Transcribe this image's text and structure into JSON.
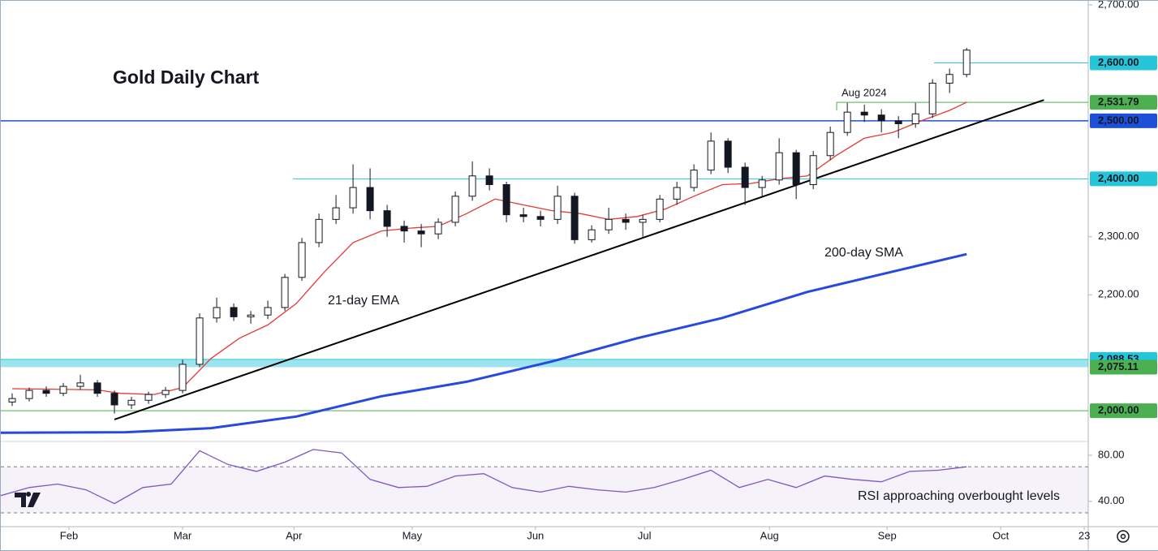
{
  "chart_data": [
    {
      "type": "candlestick",
      "title": "Gold Daily Chart",
      "x": [
        -10,
        -7,
        -4,
        -1,
        2,
        5,
        8,
        11,
        14,
        17,
        20,
        23,
        26,
        29,
        32,
        35,
        38,
        41,
        44,
        47,
        50,
        53,
        56,
        59,
        62,
        65,
        68,
        71,
        74,
        77,
        80,
        83,
        86,
        89,
        92,
        95,
        98,
        101,
        104,
        107,
        110,
        113,
        116,
        119,
        122,
        125,
        128,
        131,
        134,
        137,
        140,
        143,
        146,
        149,
        152,
        155,
        158
      ],
      "open": [
        2015,
        2021,
        2035,
        2030,
        2042,
        2048,
        2030,
        2010,
        2018,
        2028,
        2035,
        2080,
        2160,
        2178,
        2162,
        2165,
        2178,
        2230,
        2290,
        2330,
        2350,
        2385,
        2345,
        2318,
        2310,
        2305,
        2325,
        2370,
        2405,
        2390,
        2338,
        2335,
        2330,
        2370,
        2295,
        2312,
        2330,
        2325,
        2330,
        2365,
        2385,
        2415,
        2465,
        2420,
        2385,
        2398,
        2445,
        2390,
        2440,
        2480,
        2515,
        2510,
        2500,
        2495,
        2512,
        2565,
        2580
      ],
      "high": [
        2030,
        2040,
        2042,
        2048,
        2062,
        2053,
        2035,
        2024,
        2033,
        2041,
        2088,
        2168,
        2195,
        2185,
        2172,
        2190,
        2236,
        2298,
        2340,
        2372,
        2425,
        2418,
        2355,
        2328,
        2322,
        2332,
        2378,
        2430,
        2418,
        2395,
        2350,
        2345,
        2388,
        2376,
        2320,
        2350,
        2340,
        2338,
        2372,
        2395,
        2425,
        2480,
        2470,
        2428,
        2405,
        2470,
        2450,
        2448,
        2490,
        2531,
        2528,
        2520,
        2508,
        2531,
        2572,
        2590,
        2626
      ],
      "low": [
        2008,
        2016,
        2024,
        2025,
        2036,
        2024,
        1995,
        2003,
        2012,
        2022,
        2030,
        2075,
        2152,
        2155,
        2150,
        2158,
        2172,
        2224,
        2282,
        2322,
        2340,
        2330,
        2300,
        2290,
        2282,
        2296,
        2318,
        2362,
        2380,
        2325,
        2325,
        2318,
        2322,
        2288,
        2290,
        2305,
        2312,
        2300,
        2325,
        2355,
        2378,
        2408,
        2410,
        2355,
        2370,
        2390,
        2365,
        2382,
        2432,
        2474,
        2498,
        2480,
        2470,
        2488,
        2505,
        2548,
        2575
      ],
      "close": [
        2021,
        2035,
        2030,
        2042,
        2048,
        2030,
        2010,
        2018,
        2028,
        2035,
        2080,
        2160,
        2178,
        2162,
        2165,
        2178,
        2230,
        2290,
        2330,
        2350,
        2385,
        2345,
        2318,
        2310,
        2305,
        2325,
        2370,
        2405,
        2390,
        2338,
        2335,
        2330,
        2370,
        2295,
        2312,
        2330,
        2325,
        2330,
        2365,
        2385,
        2415,
        2465,
        2420,
        2385,
        2398,
        2445,
        2390,
        2440,
        2480,
        2515,
        2510,
        2500,
        2495,
        2512,
        2565,
        2580,
        2622
      ],
      "lines": [
        {
          "name": "21-day EMA",
          "color": "#e53935",
          "x": [
            -10,
            5,
            9,
            15,
            20,
            25,
            30,
            35,
            40,
            45,
            50,
            55,
            60,
            65,
            70,
            75,
            80,
            85,
            90,
            95,
            100,
            105,
            110,
            115,
            120,
            125,
            130,
            135,
            140,
            145,
            150,
            155,
            158
          ],
          "values": [
            2038,
            2036,
            2030,
            2028,
            2040,
            2090,
            2125,
            2148,
            2185,
            2240,
            2290,
            2310,
            2315,
            2318,
            2340,
            2365,
            2355,
            2345,
            2340,
            2330,
            2335,
            2348,
            2370,
            2390,
            2392,
            2400,
            2405,
            2440,
            2470,
            2480,
            2500,
            2518,
            2532
          ]
        },
        {
          "name": "200-day SMA",
          "color": "#2848e0",
          "x": [
            -12,
            10,
            25,
            40,
            55,
            70,
            85,
            100,
            115,
            130,
            145,
            158
          ],
          "values": [
            1962,
            1963,
            1970,
            1990,
            2025,
            2050,
            2085,
            2125,
            2160,
            2205,
            2240,
            2270
          ]
        }
      ],
      "trendline": {
        "x": [
          8,
          171.6
        ],
        "values": [
          1985,
          2536
        ],
        "color": "#000000"
      },
      "levels": [
        {
          "value": 2600,
          "label": "2,600.00",
          "color": "#26c6da"
        },
        {
          "value": 2531.79,
          "label": "2,531.79",
          "color": "#4caf50"
        },
        {
          "value": 2500,
          "label": "2,500.00",
          "color": "#1e4fd8"
        },
        {
          "value": 2400,
          "label": "2,400.00",
          "color": "#26c6da"
        },
        {
          "value": 2088.53,
          "label": "2,088.53",
          "color": "#26c6da"
        },
        {
          "value": 2075.11,
          "label": "2,075.11",
          "color": "#4caf50"
        },
        {
          "value": 2000,
          "label": "2,000.00",
          "color": "#4caf50"
        }
      ],
      "annotations": [
        "Aug 2024"
      ],
      "xlim": [
        -12,
        179.4
      ],
      "ylim": [
        1947,
        2707
      ],
      "yticks": [
        {
          "value": 2700,
          "label": "2,700.00"
        },
        {
          "value": 2300,
          "label": "2,300.00"
        },
        {
          "value": 2200,
          "label": "2,200.00"
        }
      ],
      "xticks": [
        {
          "value": 0,
          "label": "Feb"
        },
        {
          "value": 20,
          "label": "Mar"
        },
        {
          "value": 39.6,
          "label": "Apr"
        },
        {
          "value": 60.4,
          "label": "May"
        },
        {
          "value": 82.1,
          "label": "Jun"
        },
        {
          "value": 101.3,
          "label": "Jul"
        },
        {
          "value": 123.3,
          "label": "Aug"
        },
        {
          "value": 144,
          "label": "Sep"
        },
        {
          "value": 164,
          "label": "Oct"
        },
        {
          "value": 178.7,
          "label": "23"
        }
      ]
    },
    {
      "type": "line",
      "annotations": [
        "RSI approaching overbought levels"
      ],
      "color": "#7e57c2",
      "x": [
        -12,
        -7,
        -2,
        3,
        8,
        13,
        18,
        23,
        28,
        33,
        38,
        43,
        48,
        53,
        58,
        63,
        68,
        73,
        78,
        83,
        88,
        93,
        98,
        103,
        108,
        113,
        118,
        123,
        128,
        133,
        138,
        143,
        148,
        153,
        158
      ],
      "values": [
        45,
        52,
        55,
        50,
        38,
        52,
        55,
        84,
        72,
        66,
        74,
        85,
        82,
        59,
        52,
        53,
        62,
        64,
        52,
        48,
        53,
        50,
        48,
        52,
        59,
        67,
        52,
        59,
        52,
        62,
        59,
        57,
        66,
        67,
        70
      ],
      "band": [
        30,
        70
      ],
      "xlim": [
        -12,
        179.4
      ],
      "ylim": [
        18,
        92
      ],
      "yticks": [
        {
          "value": 80,
          "label": "80.00"
        },
        {
          "value": 40,
          "label": "40.00"
        }
      ]
    }
  ]
}
